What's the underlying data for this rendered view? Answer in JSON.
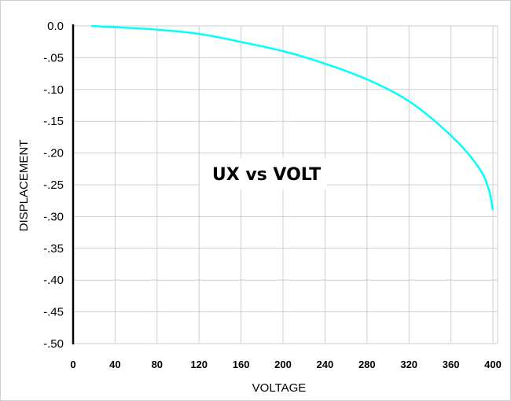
{
  "chart_data": {
    "type": "line",
    "title": "UX vs VOLT",
    "xlabel": "VOLTAGE",
    "ylabel": "DISPLACEMENT",
    "xlim": [
      0,
      400
    ],
    "ylim": [
      -0.5,
      0
    ],
    "x_ticks": [
      "0",
      "40",
      "80",
      "120",
      "160",
      "200",
      "240",
      "280",
      "320",
      "360",
      "400"
    ],
    "y_ticks": [
      "0.0",
      "-.05",
      "-.10",
      "-.15",
      "-.20",
      "-.25",
      "-.30",
      "-.35",
      "-.40",
      "-.45",
      "-.50"
    ],
    "grid": true,
    "line_color": "#00FFFF",
    "series": [
      {
        "x": [
          17,
          40,
          81,
          122,
          162,
          203,
          243,
          284,
          324,
          364,
          387,
          396,
          400
        ],
        "y": [
          0.0,
          -0.002,
          -0.006,
          -0.013,
          -0.026,
          -0.041,
          -0.061,
          -0.087,
          -0.123,
          -0.179,
          -0.224,
          -0.257,
          -0.29
        ]
      }
    ]
  }
}
